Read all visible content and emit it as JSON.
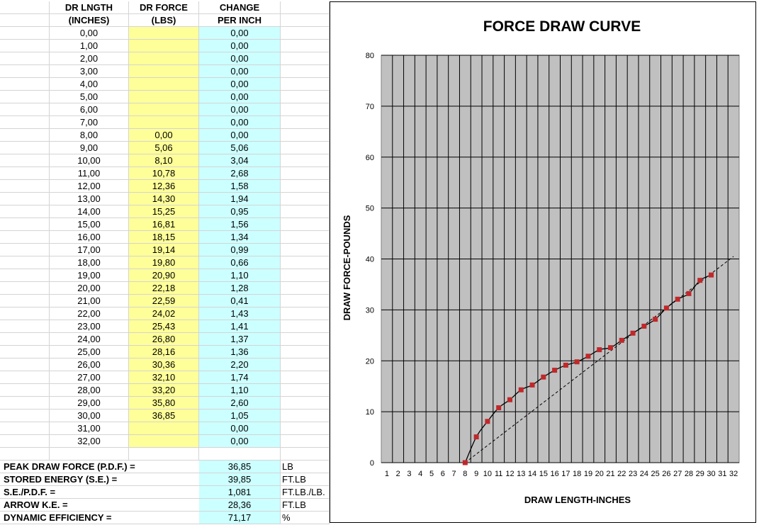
{
  "table": {
    "headers": [
      [
        "DR LNGTH",
        "(INCHES)"
      ],
      [
        "DR  FORCE",
        "(LBS)"
      ],
      [
        "CHANGE",
        "PER INCH"
      ]
    ],
    "rows": [
      [
        "0,00",
        null,
        "0,00"
      ],
      [
        "1,00",
        null,
        "0,00"
      ],
      [
        "2,00",
        null,
        "0,00"
      ],
      [
        "3,00",
        null,
        "0,00"
      ],
      [
        "4,00",
        null,
        "0,00"
      ],
      [
        "5,00",
        null,
        "0,00"
      ],
      [
        "6,00",
        null,
        "0,00"
      ],
      [
        "7,00",
        null,
        "0,00"
      ],
      [
        "8,00",
        "0,00",
        "0,00"
      ],
      [
        "9,00",
        "5,06",
        "5,06"
      ],
      [
        "10,00",
        "8,10",
        "3,04"
      ],
      [
        "11,00",
        "10,78",
        "2,68"
      ],
      [
        "12,00",
        "12,36",
        "1,58"
      ],
      [
        "13,00",
        "14,30",
        "1,94"
      ],
      [
        "14,00",
        "15,25",
        "0,95"
      ],
      [
        "15,00",
        "16,81",
        "1,56"
      ],
      [
        "16,00",
        "18,15",
        "1,34"
      ],
      [
        "17,00",
        "19,14",
        "0,99"
      ],
      [
        "18,00",
        "19,80",
        "0,66"
      ],
      [
        "19,00",
        "20,90",
        "1,10"
      ],
      [
        "20,00",
        "22,18",
        "1,28"
      ],
      [
        "21,00",
        "22,59",
        "0,41"
      ],
      [
        "22,00",
        "24,02",
        "1,43"
      ],
      [
        "23,00",
        "25,43",
        "1,41"
      ],
      [
        "24,00",
        "26,80",
        "1,37"
      ],
      [
        "25,00",
        "28,16",
        "1,36"
      ],
      [
        "26,00",
        "30,36",
        "2,20"
      ],
      [
        "27,00",
        "32,10",
        "1,74"
      ],
      [
        "28,00",
        "33,20",
        "1,10"
      ],
      [
        "29,00",
        "35,80",
        "2,60"
      ],
      [
        "30,00",
        "36,85",
        "1,05"
      ],
      [
        "31,00",
        null,
        "0,00"
      ],
      [
        "32,00",
        null,
        "0,00"
      ]
    ],
    "summary": [
      {
        "label": "PEAK DRAW FORCE (P.D.F.) =",
        "value": "36,85",
        "unit": "LB"
      },
      {
        "label": "STORED ENERGY (S.E.) =",
        "value": "39,85",
        "unit": "FT.LB"
      },
      {
        "label": "S.E./P.D.F. =",
        "value": "1,081",
        "unit": "FT.LB./LB."
      },
      {
        "label": "ARROW K.E. =",
        "value": "28,36",
        "unit": "FT.LB"
      },
      {
        "label": "DYNAMIC EFFICIENCY =",
        "value": "71,17",
        "unit": "%"
      }
    ]
  },
  "chart_data": {
    "type": "line",
    "title": "FORCE DRAW CURVE",
    "x_label": "DRAW LENGTH-INCHES",
    "y_label": "DRAW FORCE-POUNDS",
    "categories": [
      1,
      2,
      3,
      4,
      5,
      6,
      7,
      8,
      9,
      10,
      11,
      12,
      13,
      14,
      15,
      16,
      17,
      18,
      19,
      20,
      21,
      22,
      23,
      24,
      25,
      26,
      27,
      28,
      29,
      30,
      31,
      32
    ],
    "series": [
      {
        "color": "#c0282a",
        "line_color": "#000000",
        "values": [
          null,
          null,
          null,
          null,
          null,
          null,
          null,
          0,
          5.06,
          8.1,
          10.78,
          12.36,
          14.3,
          15.25,
          16.81,
          18.15,
          19.14,
          19.8,
          20.9,
          22.18,
          22.59,
          24.02,
          25.43,
          26.8,
          28.16,
          30.36,
          32.1,
          33.2,
          35.8,
          36.85,
          null,
          null
        ]
      }
    ],
    "reference_line": {
      "x": [
        8,
        32
      ],
      "values": [
        0,
        40.5
      ],
      "dashed": true,
      "color": "#000000"
    },
    "ylim": [
      0,
      80
    ],
    "yticks": [
      0,
      10,
      20,
      30,
      40,
      50,
      60,
      70,
      80
    ],
    "grid": true,
    "plot_color": "#c0c0c0"
  }
}
